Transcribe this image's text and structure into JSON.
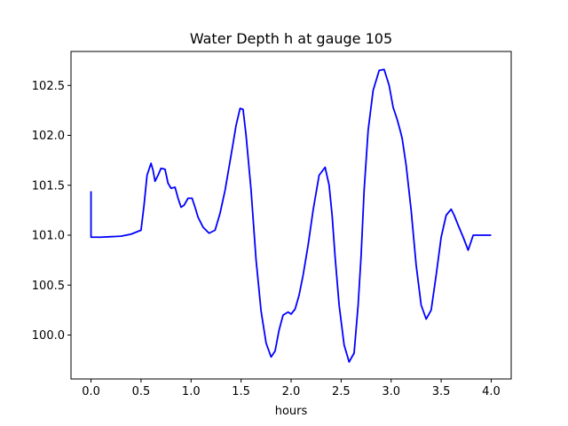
{
  "chart_data": {
    "type": "line",
    "title": "Water Depth h at gauge 105",
    "xlabel": "hours",
    "ylabel": "",
    "xlim": [
      -0.2,
      4.2
    ],
    "ylim": [
      99.56,
      102.84
    ],
    "xticks": [
      0.0,
      0.5,
      1.0,
      1.5,
      2.0,
      2.5,
      3.0,
      3.5,
      4.0
    ],
    "xtick_labels": [
      "0.0",
      "0.5",
      "1.0",
      "1.5",
      "2.0",
      "2.5",
      "3.0",
      "3.5",
      "4.0"
    ],
    "yticks": [
      100.0,
      100.5,
      101.0,
      101.5,
      102.0,
      102.5
    ],
    "ytick_labels": [
      "100.0",
      "100.5",
      "101.0",
      "101.5",
      "102.0",
      "102.5"
    ],
    "grid": false,
    "series": [
      {
        "color": "#0000ff",
        "x": [
          0.0,
          0.0,
          0.05,
          0.1,
          0.2,
          0.3,
          0.4,
          0.45,
          0.5,
          0.53,
          0.56,
          0.6,
          0.62,
          0.64,
          0.67,
          0.7,
          0.74,
          0.77,
          0.8,
          0.84,
          0.87,
          0.9,
          0.93,
          0.97,
          1.01,
          1.04,
          1.07,
          1.12,
          1.18,
          1.24,
          1.29,
          1.34,
          1.4,
          1.45,
          1.49,
          1.52,
          1.55,
          1.6,
          1.65,
          1.7,
          1.75,
          1.8,
          1.84,
          1.88,
          1.92,
          1.97,
          2.0,
          2.04,
          2.08,
          2.12,
          2.17,
          2.22,
          2.28,
          2.34,
          2.38,
          2.41,
          2.44,
          2.48,
          2.53,
          2.58,
          2.63,
          2.67,
          2.7,
          2.73,
          2.77,
          2.82,
          2.88,
          2.93,
          2.98,
          3.02,
          3.06,
          3.09,
          3.11,
          3.15,
          3.2,
          3.25,
          3.3,
          3.35,
          3.4,
          3.45,
          3.5,
          3.55,
          3.6,
          3.63,
          3.67,
          3.72,
          3.77,
          3.82,
          3.86,
          3.9,
          3.94,
          3.98,
          4.0
        ],
        "y": [
          101.44,
          100.98,
          100.98,
          100.98,
          100.985,
          100.99,
          101.01,
          101.03,
          101.05,
          101.3,
          101.6,
          101.72,
          101.65,
          101.54,
          101.6,
          101.67,
          101.66,
          101.52,
          101.47,
          101.48,
          101.37,
          101.28,
          101.3,
          101.37,
          101.37,
          101.28,
          101.18,
          101.08,
          101.02,
          101.05,
          101.22,
          101.45,
          101.8,
          102.1,
          102.27,
          102.26,
          102.0,
          101.45,
          100.75,
          100.24,
          99.92,
          99.78,
          99.84,
          100.05,
          100.2,
          100.23,
          100.21,
          100.26,
          100.4,
          100.6,
          100.9,
          101.25,
          101.6,
          101.68,
          101.5,
          101.2,
          100.78,
          100.3,
          99.9,
          99.73,
          99.82,
          100.3,
          100.8,
          101.45,
          102.05,
          102.45,
          102.65,
          102.66,
          102.5,
          102.28,
          102.16,
          102.05,
          101.97,
          101.7,
          101.25,
          100.7,
          100.3,
          100.16,
          100.25,
          100.6,
          100.98,
          101.2,
          101.26,
          101.2,
          101.1,
          100.98,
          100.85,
          101.0,
          101.0,
          101.0,
          101.0,
          101.0,
          101.0
        ]
      }
    ]
  }
}
